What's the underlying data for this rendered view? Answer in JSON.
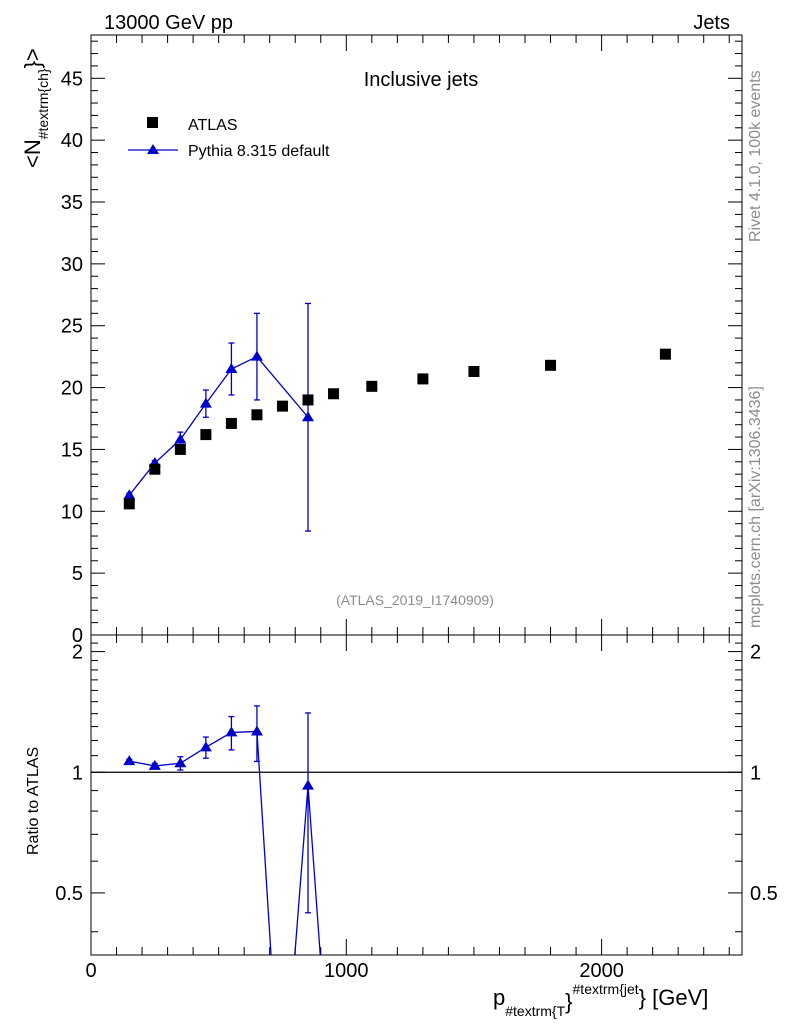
{
  "header": {
    "left": "13000 GeV pp",
    "right": "Jets"
  },
  "side_labels": {
    "rivet": "Rivet 4.1.0,  100k events",
    "source": "mcplots.cern.ch [arXiv:1306.3436]"
  },
  "colors": {
    "atlas": "#000000",
    "pythia": "#0000cc",
    "watermark": "#8c8c8c"
  },
  "chart_data": [
    {
      "type": "scatter",
      "panel": "main",
      "title": "Inclusive jets",
      "watermark": "(ATLAS_2019_I1740909)",
      "ylabel": "<N#textrm{ch}>",
      "ylabel_main": "<N",
      "ylabel_sub": "#textrm{ch}",
      "ylabel_close": "}>",
      "xlim": [
        0,
        2550
      ],
      "ylim": [
        0,
        48.5
      ],
      "yticks": [
        0,
        5,
        10,
        15,
        20,
        25,
        30,
        35,
        40,
        45
      ],
      "ytick_labels": [
        "0",
        "5",
        "10",
        "15",
        "20",
        "25",
        "30",
        "35",
        "40",
        "45"
      ],
      "legend_position": "top-left",
      "series": [
        {
          "name": "ATLAS",
          "marker": "square",
          "x": [
            150,
            250,
            350,
            450,
            550,
            650,
            750,
            850,
            950,
            1100,
            1300,
            1500,
            1800,
            2250
          ],
          "y": [
            10.6,
            13.4,
            15.0,
            16.2,
            17.1,
            17.8,
            18.5,
            19.0,
            19.5,
            20.1,
            20.7,
            21.3,
            21.8,
            22.7
          ]
        },
        {
          "name": "Pythia 8.315 default",
          "marker": "triangle",
          "line": true,
          "x": [
            150,
            250,
            350,
            450,
            550,
            650,
            850
          ],
          "y": [
            11.3,
            13.9,
            15.8,
            18.7,
            21.5,
            22.5,
            17.6
          ],
          "yerr": [
            0.15,
            0.2,
            0.6,
            1.1,
            2.1,
            3.5,
            9.2
          ]
        }
      ]
    },
    {
      "type": "line",
      "panel": "ratio",
      "ylabel": "Ratio to ATLAS",
      "xlabel": "p#textrm{T}#textrm{jet} [GeV]",
      "xlabel_p": "p",
      "xlabel_sub": "#textrm{T",
      "xlabel_brace": "}",
      "xlabel_sup": "#textrm{jet",
      "xlabel_unit": "} [GeV]",
      "xlim": [
        0,
        2550
      ],
      "ylim": [
        0.35,
        2.2
      ],
      "yscale": "log",
      "yticks": [
        0.5,
        1,
        2
      ],
      "ytick_labels": [
        "0.5",
        "1",
        "2"
      ],
      "xticks": [
        0,
        1000,
        2000
      ],
      "xtick_labels": [
        "0",
        "1000",
        "2000"
      ],
      "reference_line": 1,
      "series": [
        {
          "name": "Pythia 8.315 default",
          "x": [
            150,
            250,
            350,
            450,
            550,
            650,
            850
          ],
          "y": [
            1.066,
            1.037,
            1.053,
            1.154,
            1.257,
            1.264,
            0.926
          ],
          "yerr": [
            0.012,
            0.015,
            0.04,
            0.07,
            0.12,
            0.2,
            0.48
          ],
          "offscale": [
            {
              "from_index": 5,
              "to_x": 720,
              "direction": "down"
            },
            {
              "from_index": 6,
              "to_x": 915,
              "direction": "down"
            }
          ]
        }
      ]
    }
  ]
}
